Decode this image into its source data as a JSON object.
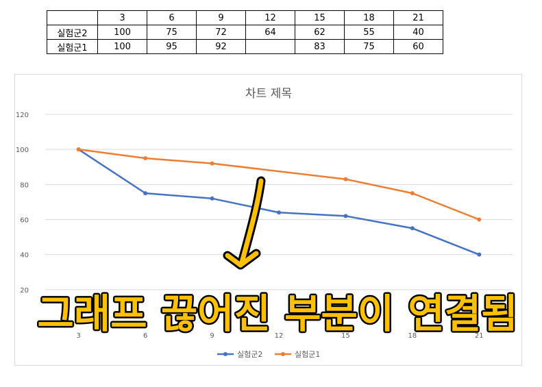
{
  "table": {
    "header": [
      "",
      "3",
      "6",
      "9",
      "12",
      "15",
      "18",
      "21"
    ],
    "rows": [
      [
        "실험군2",
        "100",
        "75",
        "72",
        "64",
        "62",
        "55",
        "40"
      ],
      [
        "실험군1",
        "100",
        "95",
        "92",
        "",
        "83",
        "75",
        "60"
      ]
    ]
  },
  "chart_data": {
    "type": "line",
    "title": "차트 제목",
    "categories": [
      "3",
      "6",
      "9",
      "12",
      "15",
      "18",
      "21"
    ],
    "series": [
      {
        "name": "실험군2",
        "values": [
          100,
          75,
          72,
          64,
          62,
          55,
          40
        ],
        "color": "#4472c4"
      },
      {
        "name": "실험군1",
        "values": [
          100,
          95,
          92,
          null,
          83,
          75,
          60
        ],
        "color": "#ed7d31"
      }
    ],
    "ylim": [
      0,
      120
    ],
    "yticks": [
      20,
      40,
      60,
      80,
      100,
      120
    ],
    "grid": true,
    "legend": "bottom",
    "gap_handling": "connected"
  },
  "annotation": {
    "text": "그래프 끊어진 부분이 연결됨",
    "color": "#ffc000",
    "arrow": "down-arrow"
  }
}
